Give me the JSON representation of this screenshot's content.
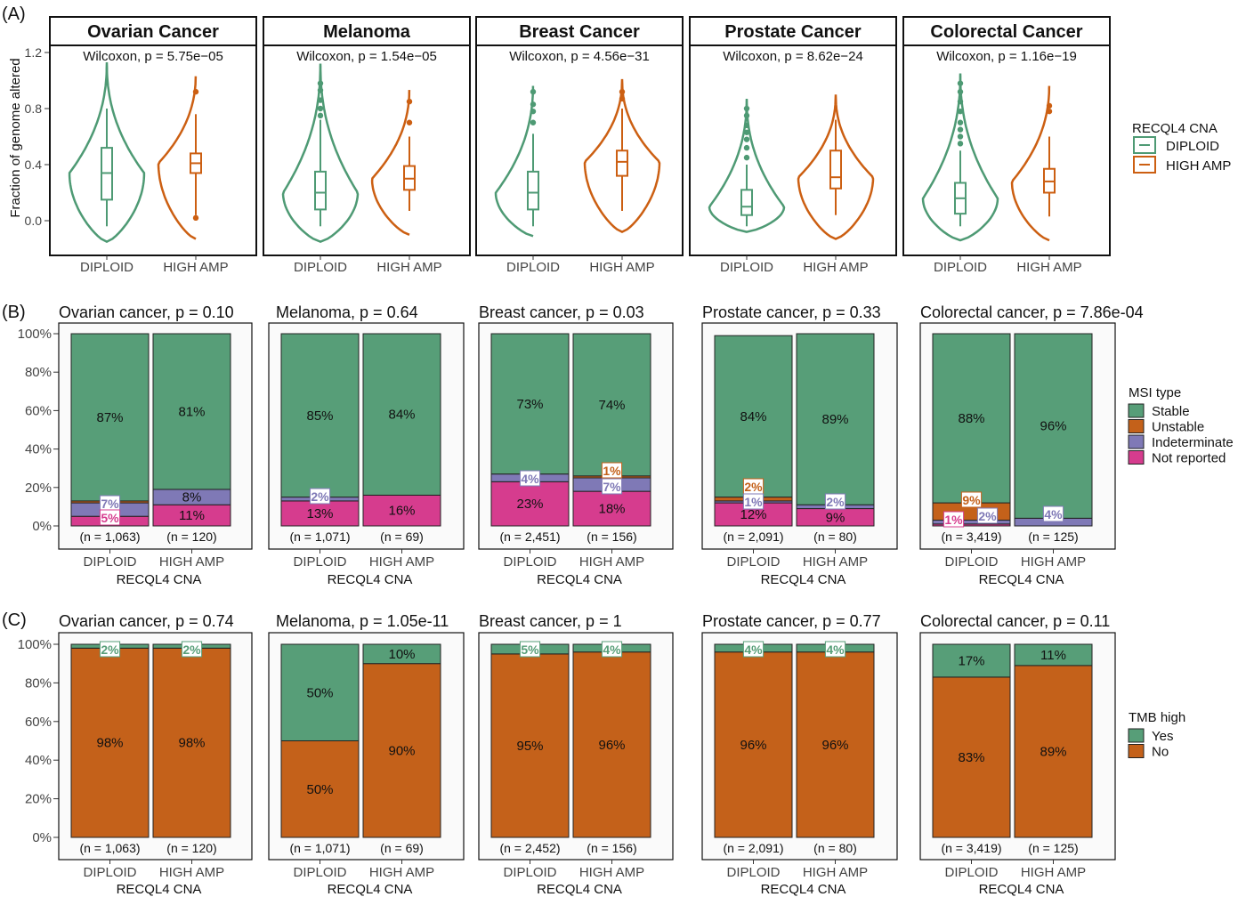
{
  "panel_labels": [
    "(A)",
    "(B)",
    "(C)"
  ],
  "colors": {
    "diploid": "#4e9a74",
    "high_amp": "#cc5f12",
    "stable": "#579e78",
    "unstable": "#c4611a",
    "indeterminate": "#7f79b6",
    "not_reported": "#d63c8e",
    "tmb_yes": "#579e78",
    "tmb_no": "#c4611a",
    "panel_bg": "#fafafa"
  },
  "chart_data": [
    {
      "type": "violin",
      "panel": "(A)",
      "ylabel": "Fraction of genome altered",
      "ylim": [
        -0.17,
        1.27
      ],
      "yticks": [
        "0.0",
        "0.4",
        "0.8",
        "1.2"
      ],
      "categories": [
        "DIPLOID",
        "HIGH AMP"
      ],
      "legend": {
        "title": "RECQL4 CNA",
        "items": [
          "DIPLOID",
          "HIGH AMP"
        ],
        "position": "right"
      },
      "facets": [
        {
          "title": "Ovarian Cancer",
          "test": "Wilcoxon, p = 5.75e−05",
          "groups": [
            {
              "name": "DIPLOID",
              "min": -0.15,
              "max": 1.13,
              "q1": 0.15,
              "median": 0.34,
              "q3": 0.52,
              "wlow": -0.04,
              "whigh": 0.8,
              "outliers": []
            },
            {
              "name": "HIGH AMP",
              "min": -0.13,
              "max": 1.05,
              "q1": 0.34,
              "median": 0.41,
              "q3": 0.48,
              "wlow": 0.04,
              "whigh": 0.76,
              "outliers": [
                0.02,
                0.92
              ]
            }
          ]
        },
        {
          "title": "Melanoma",
          "test": "Wilcoxon, p = 1.54e−05",
          "groups": [
            {
              "name": "DIPLOID",
              "min": -0.15,
              "max": 1.12,
              "q1": 0.08,
              "median": 0.2,
              "q3": 0.35,
              "wlow": -0.04,
              "whigh": 0.72,
              "outliers": [
                0.75,
                0.8,
                0.86,
                0.93,
                0.98
              ]
            },
            {
              "name": "HIGH AMP",
              "min": -0.1,
              "max": 0.95,
              "q1": 0.22,
              "median": 0.3,
              "q3": 0.39,
              "wlow": 0.07,
              "whigh": 0.6,
              "outliers": [
                0.7,
                0.85
              ]
            }
          ]
        },
        {
          "title": "Breast Cancer",
          "test": "Wilcoxon, p = 4.56e−31",
          "groups": [
            {
              "name": "DIPLOID",
              "min": -0.11,
              "max": 0.98,
              "q1": 0.08,
              "median": 0.2,
              "q3": 0.35,
              "wlow": -0.04,
              "whigh": 0.62,
              "outliers": [
                0.7,
                0.78,
                0.83,
                0.92
              ]
            },
            {
              "name": "HIGH AMP",
              "min": -0.08,
              "max": 1.01,
              "q1": 0.32,
              "median": 0.42,
              "q3": 0.5,
              "wlow": 0.07,
              "whigh": 0.8,
              "outliers": [
                0.87,
                0.92
              ]
            }
          ]
        },
        {
          "title": "Prostate Cancer",
          "test": "Wilcoxon, p = 8.62e−24",
          "groups": [
            {
              "name": "DIPLOID",
              "min": -0.08,
              "max": 0.87,
              "q1": 0.04,
              "median": 0.1,
              "q3": 0.22,
              "wlow": -0.04,
              "whigh": 0.4,
              "outliers": [
                0.45,
                0.52,
                0.58,
                0.63,
                0.68,
                0.75,
                0.8
              ]
            },
            {
              "name": "HIGH AMP",
              "min": -0.13,
              "max": 0.9,
              "q1": 0.23,
              "median": 0.31,
              "q3": 0.5,
              "wlow": 0.04,
              "whigh": 0.72,
              "outliers": []
            }
          ]
        },
        {
          "title": "Colorectal Cancer",
          "test": "Wilcoxon, p = 1.16e−19",
          "groups": [
            {
              "name": "DIPLOID",
              "min": -0.14,
              "max": 1.05,
              "q1": 0.05,
              "median": 0.16,
              "q3": 0.27,
              "wlow": -0.04,
              "whigh": 0.5,
              "outliers": [
                0.55,
                0.6,
                0.65,
                0.7,
                0.78,
                0.85,
                0.92,
                0.98
              ]
            },
            {
              "name": "HIGH AMP",
              "min": -0.14,
              "max": 0.98,
              "q1": 0.2,
              "median": 0.28,
              "q3": 0.37,
              "wlow": 0.03,
              "whigh": 0.6,
              "outliers": [
                0.78,
                0.82
              ]
            }
          ]
        }
      ]
    },
    {
      "type": "bar",
      "stacked": true,
      "panel": "(B)",
      "xlabel": "RECQL4 CNA",
      "yticks": [
        "0%",
        "20%",
        "40%",
        "60%",
        "80%",
        "100%"
      ],
      "ylim": [
        0,
        100
      ],
      "categories": [
        "DIPLOID",
        "HIGH AMP"
      ],
      "legend": {
        "title": "MSI type",
        "items": [
          "Stable",
          "Unstable",
          "Indeterminate",
          "Not reported"
        ],
        "position": "right"
      },
      "facets": [
        {
          "title": "Ovarian cancer, p = 0.10",
          "bars": [
            {
              "n": "(n = 1,063)",
              "segments": {
                "Not reported": 5,
                "Indeterminate": 7,
                "Unstable": 1,
                "Stable": 87
              },
              "labels": [
                {
                  "text": "87%",
                  "series": "Stable",
                  "boxed": false
                },
                {
                  "text": "7%",
                  "series": "Indeterminate",
                  "boxed": true
                },
                {
                  "text": "5%",
                  "series": "Not reported",
                  "boxed": true
                }
              ]
            },
            {
              "n": "(n = 120)",
              "segments": {
                "Not reported": 11,
                "Indeterminate": 8,
                "Unstable": 0,
                "Stable": 81
              },
              "labels": [
                {
                  "text": "81%",
                  "series": "Stable",
                  "boxed": false
                },
                {
                  "text": "8%",
                  "series": "Indeterminate",
                  "boxed": false
                },
                {
                  "text": "11%",
                  "series": "Not reported",
                  "boxed": false
                }
              ]
            }
          ]
        },
        {
          "title": "Melanoma, p = 0.64",
          "bars": [
            {
              "n": "(n = 1,071)",
              "segments": {
                "Not reported": 13,
                "Indeterminate": 2,
                "Unstable": 0,
                "Stable": 85
              },
              "labels": [
                {
                  "text": "85%",
                  "series": "Stable",
                  "boxed": false
                },
                {
                  "text": "2%",
                  "series": "Indeterminate",
                  "boxed": true
                },
                {
                  "text": "13%",
                  "series": "Not reported",
                  "boxed": false
                }
              ]
            },
            {
              "n": "(n = 69)",
              "segments": {
                "Not reported": 16,
                "Indeterminate": 0,
                "Unstable": 0,
                "Stable": 84
              },
              "labels": [
                {
                  "text": "84%",
                  "series": "Stable",
                  "boxed": false
                },
                {
                  "text": "16%",
                  "series": "Not reported",
                  "boxed": false
                }
              ]
            }
          ]
        },
        {
          "title": "Breast cancer, p = 0.03",
          "bars": [
            {
              "n": "(n = 2,451)",
              "segments": {
                "Not reported": 23,
                "Indeterminate": 4,
                "Unstable": 0,
                "Stable": 73
              },
              "labels": [
                {
                  "text": "73%",
                  "series": "Stable",
                  "boxed": false
                },
                {
                  "text": "4%",
                  "series": "Indeterminate",
                  "boxed": true
                },
                {
                  "text": "23%",
                  "series": "Not reported",
                  "boxed": false
                }
              ]
            },
            {
              "n": "(n = 156)",
              "segments": {
                "Not reported": 18,
                "Indeterminate": 7,
                "Unstable": 1,
                "Stable": 74
              },
              "labels": [
                {
                  "text": "74%",
                  "series": "Stable",
                  "boxed": false
                },
                {
                  "text": "1%",
                  "series": "Unstable",
                  "boxed": true
                },
                {
                  "text": "7%",
                  "series": "Indeterminate",
                  "boxed": true
                },
                {
                  "text": "18%",
                  "series": "Not reported",
                  "boxed": false
                }
              ]
            }
          ]
        },
        {
          "title": "Prostate cancer, p = 0.33",
          "bars": [
            {
              "n": "(n = 2,091)",
              "segments": {
                "Not reported": 12,
                "Indeterminate": 1,
                "Unstable": 2,
                "Stable": 84
              },
              "labels": [
                {
                  "text": "84%",
                  "series": "Stable",
                  "boxed": false
                },
                {
                  "text": "2%",
                  "series": "Unstable",
                  "boxed": true
                },
                {
                  "text": "1%",
                  "series": "Indeterminate",
                  "boxed": true
                },
                {
                  "text": "12%",
                  "series": "Not reported",
                  "boxed": false
                }
              ]
            },
            {
              "n": "(n = 80)",
              "segments": {
                "Not reported": 9,
                "Indeterminate": 2,
                "Unstable": 0,
                "Stable": 89
              },
              "labels": [
                {
                  "text": "89%",
                  "series": "Stable",
                  "boxed": false
                },
                {
                  "text": "2%",
                  "series": "Indeterminate",
                  "boxed": true
                },
                {
                  "text": "9%",
                  "series": "Not reported",
                  "boxed": false
                }
              ]
            }
          ]
        },
        {
          "title": "Colorectal cancer, p = 7.86e-04",
          "bars": [
            {
              "n": "(n = 3,419)",
              "segments": {
                "Not reported": 1,
                "Indeterminate": 2,
                "Unstable": 9,
                "Stable": 88
              },
              "labels": [
                {
                  "text": "88%",
                  "series": "Stable",
                  "boxed": false
                },
                {
                  "text": "9%",
                  "series": "Unstable",
                  "boxed": true
                },
                {
                  "text": "1%",
                  "series": "Not reported",
                  "boxed": true
                },
                {
                  "text": "2%",
                  "series": "Indeterminate",
                  "boxed": true
                }
              ]
            },
            {
              "n": "(n = 125)",
              "segments": {
                "Not reported": 0,
                "Indeterminate": 4,
                "Unstable": 0,
                "Stable": 96
              },
              "labels": [
                {
                  "text": "96%",
                  "series": "Stable",
                  "boxed": false
                },
                {
                  "text": "4%",
                  "series": "Indeterminate",
                  "boxed": true
                }
              ]
            }
          ]
        }
      ]
    },
    {
      "type": "bar",
      "stacked": true,
      "panel": "(C)",
      "xlabel": "RECQL4 CNA",
      "yticks": [
        "0%",
        "20%",
        "40%",
        "60%",
        "80%",
        "100%"
      ],
      "ylim": [
        0,
        100
      ],
      "categories": [
        "DIPLOID",
        "HIGH AMP"
      ],
      "legend": {
        "title": "TMB high",
        "items": [
          "Yes",
          "No"
        ],
        "position": "right"
      },
      "facets": [
        {
          "title": "Ovarian cancer, p = 0.74",
          "bars": [
            {
              "n": "(n = 1,063)",
              "segments": {
                "No": 98,
                "Yes": 2
              },
              "labels": [
                {
                  "text": "98%",
                  "series": "No",
                  "boxed": false
                },
                {
                  "text": "2%",
                  "series": "Yes",
                  "boxed": true
                }
              ]
            },
            {
              "n": "(n = 120)",
              "segments": {
                "No": 98,
                "Yes": 2
              },
              "labels": [
                {
                  "text": "98%",
                  "series": "No",
                  "boxed": false
                },
                {
                  "text": "2%",
                  "series": "Yes",
                  "boxed": true
                }
              ]
            }
          ]
        },
        {
          "title": "Melanoma, p = 1.05e-11",
          "bars": [
            {
              "n": "(n = 1,071)",
              "segments": {
                "No": 50,
                "Yes": 50
              },
              "labels": [
                {
                  "text": "50%",
                  "series": "No",
                  "boxed": false
                },
                {
                  "text": "50%",
                  "series": "Yes",
                  "boxed": false
                }
              ]
            },
            {
              "n": "(n = 69)",
              "segments": {
                "No": 90,
                "Yes": 10
              },
              "labels": [
                {
                  "text": "90%",
                  "series": "No",
                  "boxed": false
                },
                {
                  "text": "10%",
                  "series": "Yes",
                  "boxed": false
                }
              ]
            }
          ]
        },
        {
          "title": "Breast cancer, p = 1",
          "bars": [
            {
              "n": "(n = 2,452)",
              "segments": {
                "No": 95,
                "Yes": 5
              },
              "labels": [
                {
                  "text": "95%",
                  "series": "No",
                  "boxed": false
                },
                {
                  "text": "5%",
                  "series": "Yes",
                  "boxed": true
                }
              ]
            },
            {
              "n": "(n = 156)",
              "segments": {
                "No": 96,
                "Yes": 4
              },
              "labels": [
                {
                  "text": "96%",
                  "series": "No",
                  "boxed": false
                },
                {
                  "text": "4%",
                  "series": "Yes",
                  "boxed": true
                }
              ]
            }
          ]
        },
        {
          "title": "Prostate cancer, p = 0.77",
          "bars": [
            {
              "n": "(n = 2,091)",
              "segments": {
                "No": 96,
                "Yes": 4
              },
              "labels": [
                {
                  "text": "96%",
                  "series": "No",
                  "boxed": false
                },
                {
                  "text": "4%",
                  "series": "Yes",
                  "boxed": true
                }
              ]
            },
            {
              "n": "(n = 80)",
              "segments": {
                "No": 96,
                "Yes": 4
              },
              "labels": [
                {
                  "text": "96%",
                  "series": "No",
                  "boxed": false
                },
                {
                  "text": "4%",
                  "series": "Yes",
                  "boxed": true
                }
              ]
            }
          ]
        },
        {
          "title": "Colorectal cancer, p = 0.11",
          "bars": [
            {
              "n": "(n = 3,419)",
              "segments": {
                "No": 83,
                "Yes": 17
              },
              "labels": [
                {
                  "text": "83%",
                  "series": "No",
                  "boxed": false
                },
                {
                  "text": "17%",
                  "series": "Yes",
                  "boxed": false
                }
              ]
            },
            {
              "n": "(n = 125)",
              "segments": {
                "No": 89,
                "Yes": 11
              },
              "labels": [
                {
                  "text": "89%",
                  "series": "No",
                  "boxed": false
                },
                {
                  "text": "11%",
                  "series": "Yes",
                  "boxed": false
                }
              ]
            }
          ]
        }
      ]
    }
  ]
}
